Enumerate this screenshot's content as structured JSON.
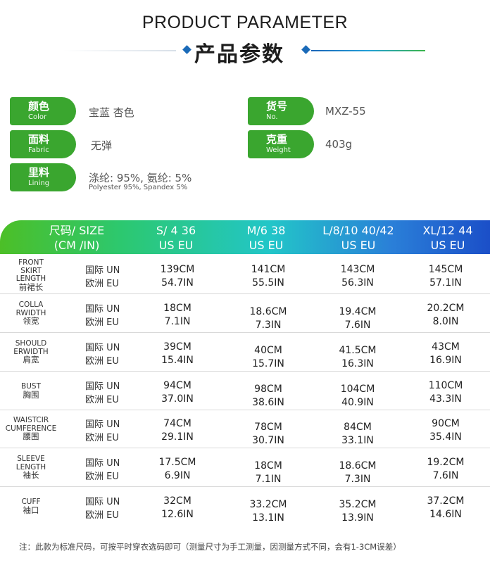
{
  "header": {
    "title_en": "PRODUCT PARAMETER",
    "title_zh": "产品参数"
  },
  "params": {
    "color": {
      "zh": "颜色",
      "en": "Color",
      "value": "宝蓝   杏色"
    },
    "item_no": {
      "zh": "货号",
      "en": "No.",
      "value": "MXZ-55"
    },
    "fabric": {
      "zh": "面料",
      "en": "Fabric",
      "value": "无弹"
    },
    "weight": {
      "zh": "克重",
      "en": "Weight",
      "value": "403g"
    },
    "lining": {
      "zh": "里料",
      "en": "Lining",
      "value": "涤纶: 95%,  氨纶: 5%",
      "value_en": "Polyester 95%, Spandex 5%"
    }
  },
  "size_table": {
    "header": {
      "label_line1": "尺码/ SIZE",
      "label_line2": "(CM /IN)",
      "sizes": [
        {
          "line1": "S/ 4   36",
          "line2": "US   EU"
        },
        {
          "line1": "M/6   38",
          "line2": "US   EU"
        },
        {
          "line1": "L/8/10  40/42",
          "line2": "US  EU"
        },
        {
          "line1": "XL/12  44",
          "line2": "US   EU"
        }
      ]
    },
    "standards": {
      "line1": "国际  UN",
      "line2": "欧洲  EU"
    },
    "rows": [
      {
        "label": [
          "FRONT",
          "SKIRT",
          "LENGTH",
          "前裙长"
        ],
        "cm": [
          "139CM",
          "141CM",
          "143CM",
          "145CM"
        ],
        "in": [
          "54.7IN",
          "55.5IN",
          "56.3IN",
          "57.1IN"
        ]
      },
      {
        "label": [
          "COLLA",
          "RWIDTH",
          "领宽"
        ],
        "cm": [
          "18CM",
          "18.6CM",
          "19.4CM",
          "20.2CM"
        ],
        "in": [
          "7.1IN",
          "7.3IN",
          "7.6IN",
          "8.0IN"
        ]
      },
      {
        "label": [
          "SHOULD",
          "ERWIDTH",
          "肩宽"
        ],
        "cm": [
          "39CM",
          "40CM",
          "41.5CM",
          "43CM"
        ],
        "in": [
          "15.4IN",
          "15.7IN",
          "16.3IN",
          "16.9IN"
        ]
      },
      {
        "label": [
          "BUST",
          "胸围"
        ],
        "cm": [
          "94CM",
          "98CM",
          "104CM",
          "110CM"
        ],
        "in": [
          "37.0IN",
          "38.6IN",
          "40.9IN",
          "43.3IN"
        ]
      },
      {
        "label": [
          "WAISTCIR",
          "CUMFERENCE",
          "腰围"
        ],
        "cm": [
          "74CM",
          "78CM",
          "84CM",
          "90CM"
        ],
        "in": [
          "29.1IN",
          "30.7IN",
          "33.1IN",
          "35.4IN"
        ]
      },
      {
        "label": [
          "SLEEVE",
          "LENGTH",
          "袖长"
        ],
        "cm": [
          "17.5CM",
          "18CM",
          "18.6CM",
          "19.2CM"
        ],
        "in": [
          "6.9IN",
          "7.1IN",
          "7.3IN",
          "7.6IN"
        ]
      },
      {
        "label": [
          "CUFF",
          "袖口"
        ],
        "cm": [
          "32CM",
          "33.2CM",
          "35.2CM",
          "37.2CM"
        ],
        "in": [
          "12.6IN",
          "13.1IN",
          "13.9IN",
          "14.6IN"
        ]
      }
    ]
  },
  "footnote": "注：此款为标准尺码，可按平时穿衣选码即可（测量尺寸为手工测量，因测量方式不同，会有1-3CM误差）",
  "colors": {
    "tag_green": "#3aa62f",
    "gradient": [
      "#4cbf27",
      "#22c6c8",
      "#1b4fc8"
    ]
  }
}
